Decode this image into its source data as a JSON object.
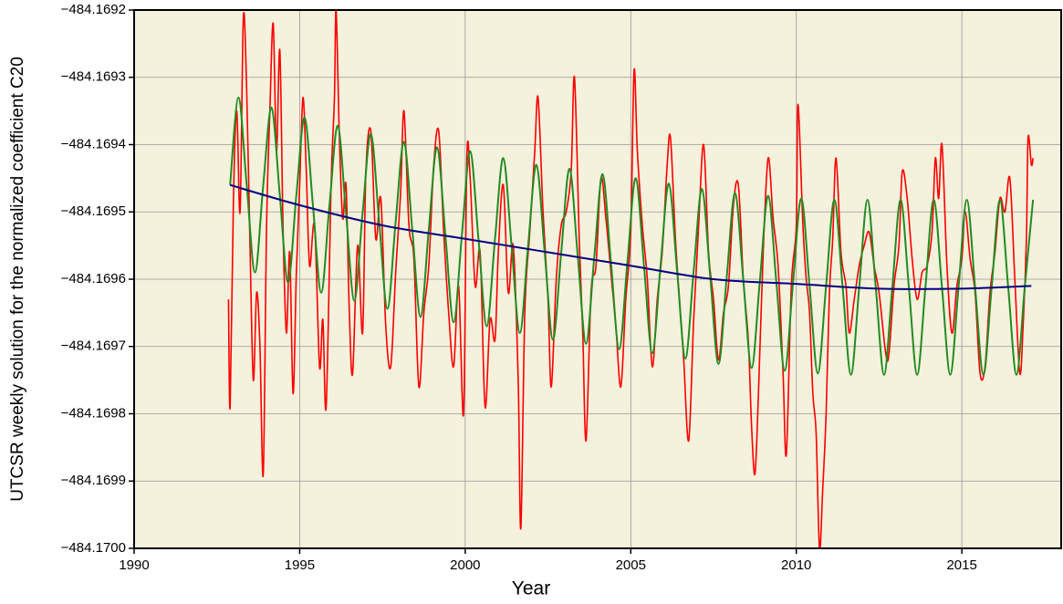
{
  "chart_data": {
    "type": "line",
    "x_label": "Year",
    "y_label": "UTCSR weekly solution for the normalized coefficient C20",
    "xlim": [
      1990,
      2018
    ],
    "xticks": [
      1990,
      1995,
      2000,
      2005,
      2010,
      2015
    ],
    "ylim": [
      -484.17,
      -484.1692
    ],
    "yticks": [
      {
        "value": -484.1692,
        "label": "−484.1692"
      },
      {
        "value": -484.1693,
        "label": "−484.1693"
      },
      {
        "value": -484.1694,
        "label": "−484.1694"
      },
      {
        "value": -484.1695,
        "label": "−484.1695"
      },
      {
        "value": -484.1696,
        "label": "−484.1696"
      },
      {
        "value": -484.1697,
        "label": "−484.1697"
      },
      {
        "value": -484.1698,
        "label": "−484.1698"
      },
      {
        "value": -484.1699,
        "label": "−484.1699"
      },
      {
        "value": -484.17,
        "label": "−484.1700"
      }
    ],
    "grid": true,
    "background": "#f4f1dc",
    "series": [
      {
        "color": "#ff0000",
        "x": [
          1992.85,
          1992.9,
          1993.0,
          1993.1,
          1993.2,
          1993.3,
          1993.4,
          1993.5,
          1993.6,
          1993.7,
          1993.8,
          1993.9,
          1994.0,
          1994.1,
          1994.2,
          1994.3,
          1994.4,
          1994.5,
          1994.6,
          1994.7,
          1994.8,
          1994.9,
          1995.0,
          1995.1,
          1995.2,
          1995.3,
          1995.45,
          1995.6,
          1995.7,
          1995.8,
          1995.95,
          1996.05,
          1996.1,
          1996.2,
          1996.3,
          1996.4,
          1996.5,
          1996.6,
          1996.75,
          1996.9,
          1997.0,
          1997.15,
          1997.3,
          1997.45,
          1997.6,
          1997.75,
          1997.9,
          1998.05,
          1998.15,
          1998.3,
          1998.45,
          1998.6,
          1998.75,
          1998.9,
          1999.05,
          1999.2,
          1999.35,
          1999.5,
          1999.65,
          1999.8,
          1999.95,
          2000.05,
          2000.15,
          2000.3,
          2000.45,
          2000.6,
          2000.75,
          2000.9,
          2001.0,
          2001.15,
          2001.3,
          2001.45,
          2001.6,
          2001.68,
          2001.8,
          2001.95,
          2002.1,
          2002.2,
          2002.35,
          2002.5,
          2002.6,
          2002.75,
          2002.9,
          2003.05,
          2003.2,
          2003.3,
          2003.45,
          2003.55,
          2003.65,
          2003.8,
          2003.95,
          2004.1,
          2004.25,
          2004.4,
          2004.55,
          2004.7,
          2004.85,
          2005.0,
          2005.1,
          2005.2,
          2005.35,
          2005.5,
          2005.65,
          2005.8,
          2005.95,
          2006.1,
          2006.2,
          2006.35,
          2006.5,
          2006.6,
          2006.75,
          2006.9,
          2007.05,
          2007.2,
          2007.35,
          2007.5,
          2007.65,
          2007.8,
          2007.95,
          2008.1,
          2008.25,
          2008.4,
          2008.55,
          2008.65,
          2008.75,
          2008.85,
          2009.0,
          2009.15,
          2009.3,
          2009.45,
          2009.6,
          2009.7,
          2009.85,
          2010.0,
          2010.05,
          2010.2,
          2010.3,
          2010.4,
          2010.5,
          2010.6,
          2010.7,
          2010.8,
          2010.9,
          2011.0,
          2011.1,
          2011.2,
          2011.35,
          2011.5,
          2011.6,
          2011.75,
          2011.9,
          2012.05,
          2012.2,
          2012.35,
          2012.5,
          2012.7,
          2012.8,
          2012.95,
          2013.1,
          2013.2,
          2013.35,
          2013.5,
          2013.65,
          2013.8,
          2013.95,
          2014.1,
          2014.2,
          2014.3,
          2014.4,
          2014.55,
          2014.7,
          2014.85,
          2015.0,
          2015.1,
          2015.25,
          2015.4,
          2015.55,
          2015.7,
          2015.85,
          2016.0,
          2016.15,
          2016.3,
          2016.45,
          2016.6,
          2016.75,
          2016.85,
          2016.95,
          2017.0,
          2017.1,
          2017.15
        ],
        "values": [
          -484.16963,
          -484.16979,
          -484.16948,
          -484.16935,
          -484.1695,
          -484.16921,
          -484.16932,
          -484.16955,
          -484.16975,
          -484.16962,
          -484.1697,
          -484.16989,
          -484.16952,
          -484.16935,
          -484.16922,
          -484.16941,
          -484.16926,
          -484.16953,
          -484.16968,
          -484.16956,
          -484.16977,
          -484.16959,
          -484.16946,
          -484.16933,
          -484.16944,
          -484.16958,
          -484.16952,
          -484.16973,
          -484.16966,
          -484.16979,
          -484.16946,
          -484.16933,
          -484.1692,
          -484.16939,
          -484.16951,
          -484.16946,
          -484.16965,
          -484.16974,
          -484.16955,
          -484.16968,
          -484.16944,
          -484.16938,
          -484.16954,
          -484.16948,
          -484.16967,
          -484.16973,
          -484.16959,
          -484.16947,
          -484.16935,
          -484.16952,
          -484.16957,
          -484.16976,
          -484.16965,
          -484.16958,
          -484.16943,
          -484.16938,
          -484.16953,
          -484.16965,
          -484.16973,
          -484.16961,
          -484.1698,
          -484.16942,
          -484.16945,
          -484.16961,
          -484.16956,
          -484.16979,
          -484.16966,
          -484.16969,
          -484.16956,
          -484.16946,
          -484.16962,
          -484.16955,
          -484.16975,
          -484.16997,
          -484.16965,
          -484.16953,
          -484.16941,
          -484.16933,
          -484.1695,
          -484.16963,
          -484.16976,
          -484.1696,
          -484.16952,
          -484.1695,
          -484.16944,
          -484.1693,
          -484.16955,
          -484.16968,
          -484.16984,
          -484.16962,
          -484.16958,
          -484.16945,
          -484.16951,
          -484.16959,
          -484.16967,
          -484.16976,
          -484.16963,
          -484.16953,
          -484.16929,
          -484.16941,
          -484.16952,
          -484.1696,
          -484.16973,
          -484.16963,
          -484.16956,
          -484.16943,
          -484.16939,
          -484.16954,
          -484.16965,
          -484.16972,
          -484.16984,
          -484.16966,
          -484.16952,
          -484.1694,
          -484.16956,
          -484.16963,
          -484.16972,
          -484.16965,
          -484.16961,
          -484.16949,
          -484.16946,
          -484.1696,
          -484.16969,
          -484.16982,
          -484.16989,
          -484.16978,
          -484.16956,
          -484.16942,
          -484.16951,
          -484.16958,
          -484.16974,
          -484.16986,
          -484.16961,
          -484.16952,
          -484.16934,
          -484.16952,
          -484.1696,
          -484.16965,
          -484.16977,
          -484.16983,
          -484.17,
          -484.16991,
          -484.1698,
          -484.16962,
          -484.16954,
          -484.16942,
          -484.16956,
          -484.16961,
          -484.16968,
          -484.16963,
          -484.16958,
          -484.16955,
          -484.16953,
          -484.16958,
          -484.16962,
          -484.16971,
          -484.16971,
          -484.16961,
          -484.16955,
          -484.16944,
          -484.16948,
          -484.16957,
          -484.16963,
          -484.16959,
          -484.16958,
          -484.16953,
          -484.16942,
          -484.16948,
          -484.1694,
          -484.16958,
          -484.16968,
          -484.16961,
          -484.16957,
          -484.1695,
          -484.16957,
          -484.16962,
          -484.16974,
          -484.16973,
          -484.16962,
          -484.16956,
          -484.16948,
          -484.1695,
          -484.16945,
          -484.1696,
          -484.16974,
          -484.16967,
          -484.16954,
          -484.16939,
          -484.16943,
          -484.16942
        ]
      },
      {
        "color": "#228b22",
        "x": [
          1992.9,
          1993.15,
          1993.4,
          1993.65,
          1993.9,
          1994.15,
          1994.4,
          1994.65,
          1994.9,
          1995.15,
          1995.4,
          1995.65,
          1995.9,
          1996.15,
          1996.4,
          1996.65,
          1996.9,
          1997.15,
          1997.4,
          1997.65,
          1997.9,
          1998.15,
          1998.4,
          1998.65,
          1998.9,
          1999.15,
          1999.4,
          1999.65,
          1999.9,
          2000.15,
          2000.4,
          2000.65,
          2000.9,
          2001.15,
          2001.4,
          2001.65,
          2001.9,
          2002.15,
          2002.4,
          2002.65,
          2002.9,
          2003.15,
          2003.4,
          2003.65,
          2003.9,
          2004.15,
          2004.4,
          2004.65,
          2004.9,
          2005.15,
          2005.4,
          2005.65,
          2005.9,
          2006.15,
          2006.4,
          2006.65,
          2006.9,
          2007.15,
          2007.4,
          2007.65,
          2007.9,
          2008.15,
          2008.4,
          2008.65,
          2008.9,
          2009.15,
          2009.4,
          2009.65,
          2009.9,
          2010.15,
          2010.4,
          2010.65,
          2010.9,
          2011.15,
          2011.4,
          2011.65,
          2011.9,
          2012.15,
          2012.4,
          2012.65,
          2012.9,
          2013.15,
          2013.4,
          2013.65,
          2013.9,
          2014.15,
          2014.4,
          2014.65,
          2014.9,
          2015.15,
          2015.4,
          2015.65,
          2015.9,
          2016.15,
          2016.4,
          2016.65,
          2016.9,
          2017.15
        ],
        "values": [
          -484.16946,
          -484.16933,
          -484.16946,
          -484.16959,
          -484.16946,
          -484.169345,
          -484.169475,
          -484.169605,
          -484.169475,
          -484.16936,
          -484.16949,
          -484.16962,
          -484.16949,
          -484.169372,
          -484.169502,
          -484.169632,
          -484.169502,
          -484.169384,
          -484.169514,
          -484.169644,
          -484.169514,
          -484.169396,
          -484.169526,
          -484.169656,
          -484.169526,
          -484.169404,
          -484.169534,
          -484.169664,
          -484.169534,
          -484.16941,
          -484.16954,
          -484.16967,
          -484.16954,
          -484.16942,
          -484.16955,
          -484.16968,
          -484.16955,
          -484.16943,
          -484.16956,
          -484.16969,
          -484.16956,
          -484.169436,
          -484.169566,
          -484.169696,
          -484.169566,
          -484.169444,
          -484.169574,
          -484.169704,
          -484.169574,
          -484.16945,
          -484.16958,
          -484.16971,
          -484.16958,
          -484.169458,
          -484.169588,
          -484.169718,
          -484.169588,
          -484.169466,
          -484.169596,
          -484.169726,
          -484.169596,
          -484.169472,
          -484.169602,
          -484.169732,
          -484.169602,
          -484.169476,
          -484.169606,
          -484.169736,
          -484.169606,
          -484.16948,
          -484.16961,
          -484.16974,
          -484.16961,
          -484.169482,
          -484.169612,
          -484.169742,
          -484.169612,
          -484.169482,
          -484.169612,
          -484.169742,
          -484.169612,
          -484.169482,
          -484.169612,
          -484.169742,
          -484.169612,
          -484.169482,
          -484.169612,
          -484.169742,
          -484.169612,
          -484.169482,
          -484.169612,
          -484.169742,
          -484.169612,
          -484.169482,
          -484.169612,
          -484.169742,
          -484.169612,
          -484.169482
        ]
      },
      {
        "color": "#000080",
        "x": [
          1992.9,
          1995,
          1997.5,
          2000,
          2002.5,
          2005,
          2007.5,
          2010,
          2012.5,
          2015,
          2017.1
        ],
        "values": [
          -484.16946,
          -484.16949,
          -484.16952,
          -484.16954,
          -484.16956,
          -484.16958,
          -484.1696,
          -484.169607,
          -484.169614,
          -484.169614,
          -484.16961
        ]
      }
    ]
  }
}
